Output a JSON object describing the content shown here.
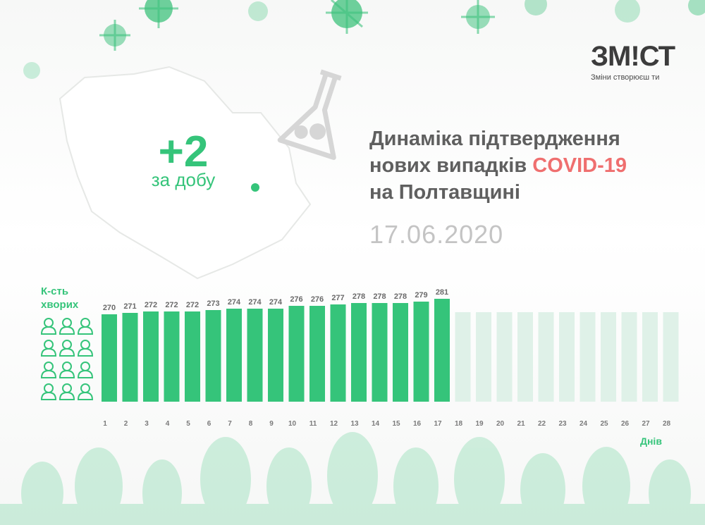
{
  "brand": {
    "name": "ЗМ!СТ",
    "tagline": "Зміни створюєш ти"
  },
  "headline": {
    "increase": "+2",
    "increase_unit": "за добу"
  },
  "title": {
    "line1": "Динаміка підтвердження",
    "line2_prefix": "нових випадків ",
    "line2_highlight": "COVID-19",
    "line3": "на Полтавщині"
  },
  "date": "17.06.2020",
  "colors": {
    "bar_active": "#35c47a",
    "bar_inactive": "#dff1e8",
    "highlight": "#ef6f6f",
    "title": "#5f5f5f"
  },
  "chart_data": {
    "type": "bar",
    "title": "Динаміка підтвердження нових випадків COVID-19 на Полтавщині",
    "ylabel_line1": "К-сть",
    "ylabel_line2": "хворих",
    "xlabel": "Днів",
    "categories": [
      "1",
      "2",
      "3",
      "4",
      "5",
      "6",
      "7",
      "8",
      "9",
      "10",
      "11",
      "12",
      "13",
      "14",
      "15",
      "16",
      "17",
      "18",
      "19",
      "20",
      "21",
      "22",
      "23",
      "24",
      "25",
      "26",
      "27",
      "28"
    ],
    "values": [
      270,
      271,
      272,
      272,
      272,
      273,
      274,
      274,
      274,
      276,
      276,
      277,
      278,
      278,
      278,
      279,
      281,
      null,
      null,
      null,
      null,
      null,
      null,
      null,
      null,
      null,
      null,
      null
    ],
    "ylim": [
      0,
      281
    ],
    "grid": false
  }
}
